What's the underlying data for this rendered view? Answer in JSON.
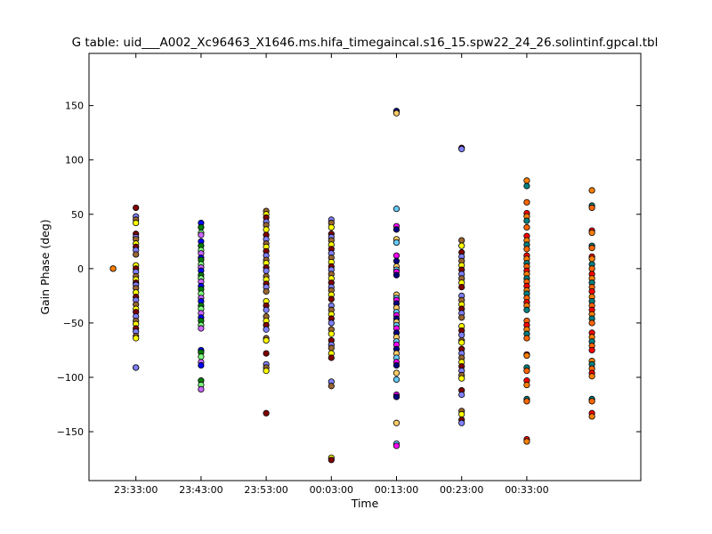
{
  "chart_data": {
    "type": "scatter",
    "title": "G table: uid___A002_Xc96463_X1646.ms.hifa_timegaincal.s16_15.spw22_24_26.solintinf.gpcal.tbl",
    "xlabel": "Time",
    "ylabel": "Gain Phase (deg)",
    "xlim": [
      "23:25:48",
      "00:50:30"
    ],
    "ylim": [
      -195,
      198
    ],
    "x_ticks": [
      "23:33:00",
      "23:43:00",
      "23:53:00",
      "00:03:00",
      "00:13:00",
      "00:23:00",
      "00:33:00"
    ],
    "y_ticks": [
      -150,
      -100,
      -50,
      0,
      50,
      100,
      150
    ],
    "y_tick_labels": [
      "−150",
      "−100",
      "−50",
      "0",
      "50",
      "100",
      "150"
    ],
    "grid": false,
    "legend": "none",
    "marker_colors": [
      "#ff0000",
      "#00ff00",
      "#0000ff",
      "#ffff00",
      "#ff00ff",
      "#00ffff",
      "#ff8000",
      "#8000ff",
      "#008000",
      "#800000",
      "#000080",
      "#808000",
      "#008080",
      "#ff8080",
      "#80ff80",
      "#8080ff",
      "#ffcc66",
      "#e0e0e0",
      "#ff6600",
      "#33cc33",
      "#cc66ff",
      "#996633",
      "#66ccff",
      "#ffb3d9"
    ],
    "groups": [
      {
        "x": "23:29:30",
        "y": [
          0,
          0
        ]
      },
      {
        "x": "23:33:00",
        "y": [
          56,
          48,
          45,
          42,
          32,
          29,
          27,
          23,
          20,
          17,
          13,
          3,
          0,
          -3,
          -7,
          -10,
          -13,
          -15,
          -18,
          -22,
          -26,
          -29,
          -33,
          -37,
          -40,
          -44,
          -48,
          -51,
          -55,
          -58,
          -62,
          -64,
          -91,
          -91
        ]
      },
      {
        "x": "23:43:00",
        "y": [
          42,
          38,
          33,
          31,
          25,
          21,
          17,
          14,
          10,
          8,
          4,
          1,
          -2,
          -6,
          -9,
          -12,
          -16,
          -19,
          -23,
          -27,
          -30,
          -34,
          -37,
          -41,
          -45,
          -48,
          -52,
          -55,
          -75,
          -77,
          -81,
          -86,
          -89,
          -103,
          -107,
          -111
        ]
      },
      {
        "x": "23:53:00",
        "y": [
          53,
          50,
          47,
          43,
          40,
          36,
          31,
          27,
          23,
          20,
          16,
          12,
          8,
          5,
          1,
          -2,
          -7,
          -10,
          -14,
          -17,
          -21,
          -30,
          -34,
          -38,
          -44,
          -48,
          -52,
          -56,
          -64,
          -66,
          -78,
          -88,
          -91,
          -94,
          -133
        ]
      },
      {
        "x": "00:03:00",
        "y": [
          45,
          42,
          38,
          32,
          29,
          26,
          22,
          18,
          14,
          10,
          6,
          2,
          -1,
          -5,
          -9,
          -13,
          -17,
          -20,
          -24,
          -28,
          -34,
          -38,
          -42,
          -46,
          -50,
          -56,
          -60,
          -66,
          -70,
          -73,
          -78,
          -82,
          -104,
          -108,
          -174,
          -176
        ]
      },
      {
        "x": "00:13:00",
        "y": [
          145,
          143,
          55,
          39,
          36,
          27,
          24,
          12,
          7,
          2,
          -1,
          -3,
          -6,
          -24,
          -27,
          -29,
          -32,
          -36,
          -40,
          -43,
          -46,
          -49,
          -52,
          -55,
          -59,
          -63,
          -67,
          -70,
          -74,
          -78,
          -82,
          -86,
          -89,
          -96,
          -102,
          -116,
          -118,
          -142,
          -161,
          -163
        ]
      },
      {
        "x": "00:23:00",
        "y": [
          111,
          110,
          26,
          21,
          15,
          11,
          7,
          3,
          -1,
          -5,
          -9,
          -13,
          -17,
          -25,
          -29,
          -33,
          -37,
          -41,
          -45,
          -53,
          -57,
          -61,
          -66,
          -68,
          -74,
          -78,
          -82,
          -86,
          -90,
          -94,
          -98,
          -101,
          -112,
          -116,
          -131,
          -134,
          -139,
          -142
        ]
      },
      {
        "x": "00:33:00",
        "y": [
          81,
          76,
          61,
          51,
          48,
          44,
          38,
          30,
          26,
          22,
          18,
          12,
          9,
          5,
          2,
          -2,
          -5,
          -9,
          -12,
          -16,
          -20,
          -23,
          -27,
          -31,
          -34,
          -38,
          -48,
          -52,
          -56,
          -60,
          -64,
          -79,
          -80,
          -91,
          -94,
          -103,
          -107,
          -120,
          -122,
          -157,
          -159
        ]
      },
      {
        "x": "00:43:00",
        "y": [
          72,
          58,
          56,
          35,
          33,
          21,
          19,
          11,
          9,
          4,
          0,
          -5,
          -9,
          -13,
          -17,
          -21,
          -26,
          -30,
          -34,
          -38,
          -42,
          -46,
          -50,
          -59,
          -63,
          -67,
          -71,
          -75,
          -85,
          -88,
          -92,
          -96,
          -99,
          -120,
          -122,
          -133,
          -136
        ]
      }
    ]
  }
}
